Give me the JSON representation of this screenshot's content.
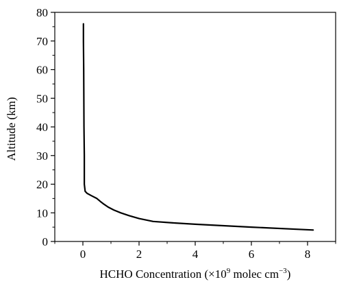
{
  "chart_data": {
    "type": "line",
    "title": "",
    "xlabel": {
      "main": "HCHO Concentration (×10",
      "exp": "9",
      "mid": " molec cm",
      "exp2": "−3",
      "end": ")"
    },
    "ylabel": "Altitude (km)",
    "xlim": [
      -1,
      9
    ],
    "ylim": [
      0,
      80
    ],
    "xticks": [
      0,
      2,
      4,
      6,
      8
    ],
    "xminor": [
      -1,
      1,
      3,
      5,
      7,
      9
    ],
    "yticks": [
      0,
      10,
      20,
      30,
      40,
      50,
      60,
      70,
      80
    ],
    "grid": false,
    "series": [
      {
        "color": "#000000",
        "x": [
          0.02,
          0.02,
          0.03,
          0.04,
          0.05,
          0.05,
          0.08,
          0.15,
          0.3,
          0.5,
          0.62,
          0.75,
          0.9,
          1.1,
          1.35,
          1.65,
          2.0,
          2.5,
          3.2,
          4.0,
          6.0,
          8.2
        ],
        "y": [
          76,
          70,
          60,
          40,
          30,
          20,
          17.5,
          16.8,
          16.0,
          15.0,
          14.0,
          13.0,
          12.0,
          11.0,
          10.0,
          9.0,
          8.0,
          7.0,
          6.5,
          6.0,
          5.0,
          4.0
        ]
      }
    ]
  }
}
